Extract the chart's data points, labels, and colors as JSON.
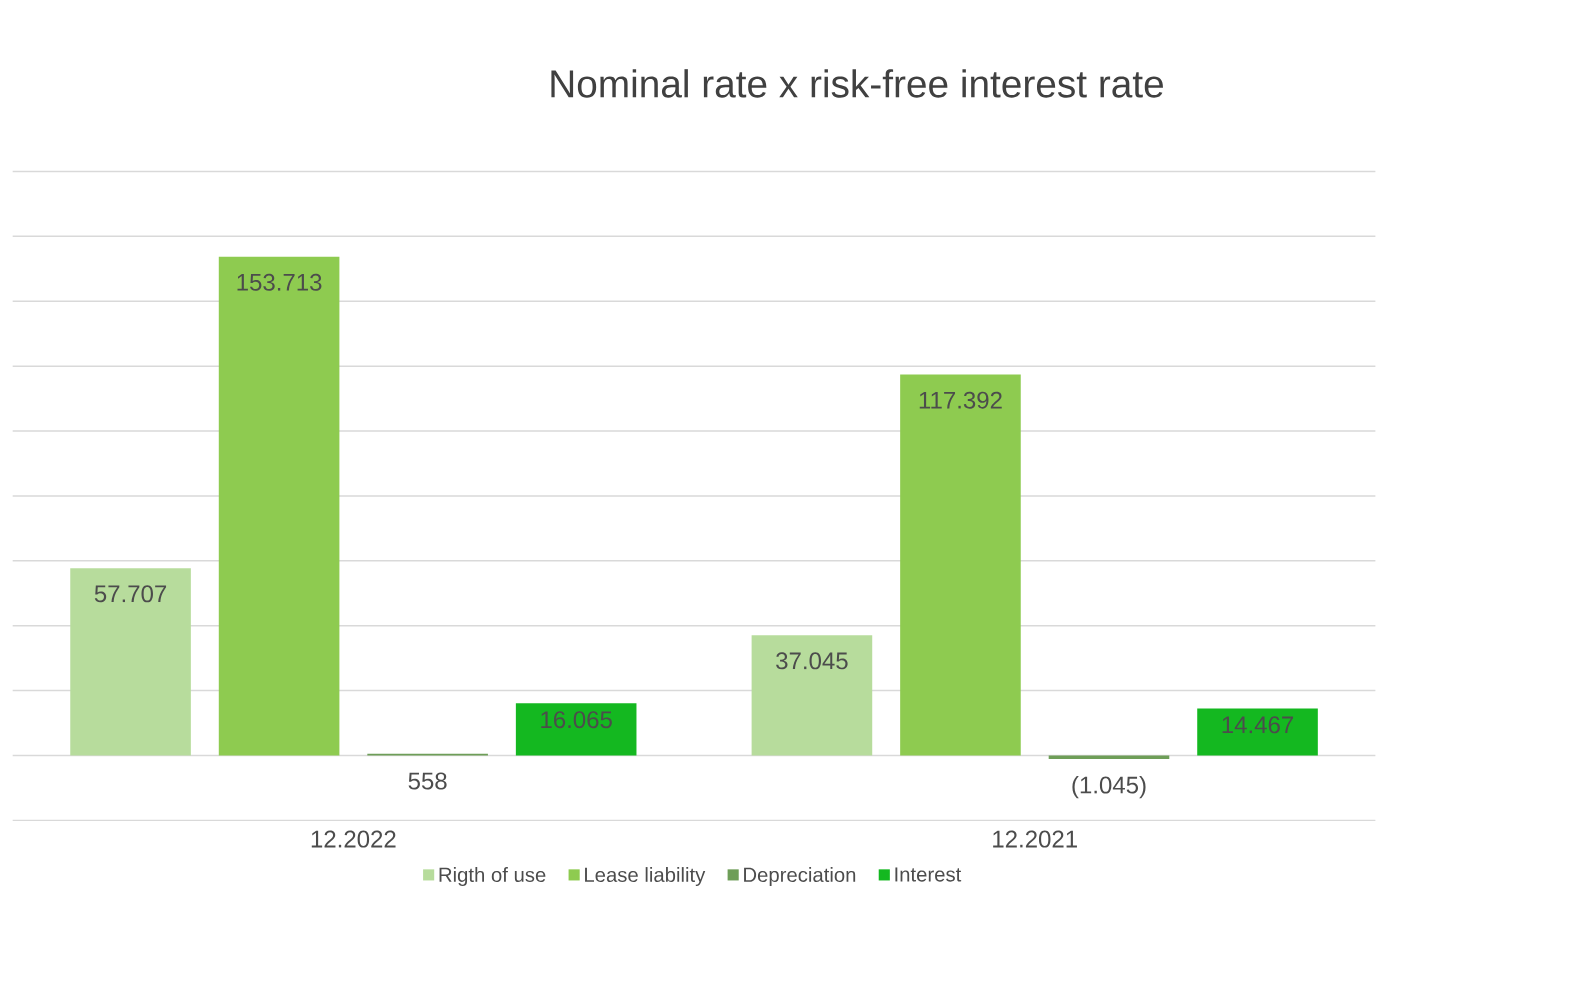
{
  "chart_data": {
    "type": "bar",
    "title": "Nominal rate x risk-free interest rate",
    "categories": [
      "12.2022",
      "12.2021"
    ],
    "series": [
      {
        "name": "Rigth of use",
        "color": "#b7dc9c",
        "values": [
          57707,
          37045
        ],
        "value_labels": [
          "57.707",
          "37.045"
        ]
      },
      {
        "name": "Lease liability",
        "color": "#8ecb50",
        "values": [
          153713,
          117392
        ],
        "value_labels": [
          "153.713",
          "117.392"
        ]
      },
      {
        "name": "Depreciation",
        "color": "#6e9e58",
        "values": [
          558,
          -1045
        ],
        "value_labels": [
          "558",
          "(1.045)"
        ]
      },
      {
        "name": "Interest",
        "color": "#14b820",
        "values": [
          16065,
          14467
        ],
        "value_labels": [
          "16.065",
          "14.467"
        ]
      }
    ],
    "ylim": [
      -20000,
      180000
    ],
    "yticks": [
      {
        "value": -20000,
        "label": null
      },
      {
        "value": 0,
        "label": null
      },
      {
        "value": 20000,
        "label": null
      },
      {
        "value": 40000,
        "label": null
      },
      {
        "value": 60000,
        "label": null
      },
      {
        "value": 80000,
        "label": null
      },
      {
        "value": 100000,
        "label": null
      },
      {
        "value": 120000,
        "label": null
      },
      {
        "value": 140000,
        "label": null
      },
      {
        "value": 160000,
        "label": null
      },
      {
        "value": 180000,
        "label": null
      }
    ],
    "grid": "y",
    "tick_labels": "x",
    "legend": "bottom"
  }
}
